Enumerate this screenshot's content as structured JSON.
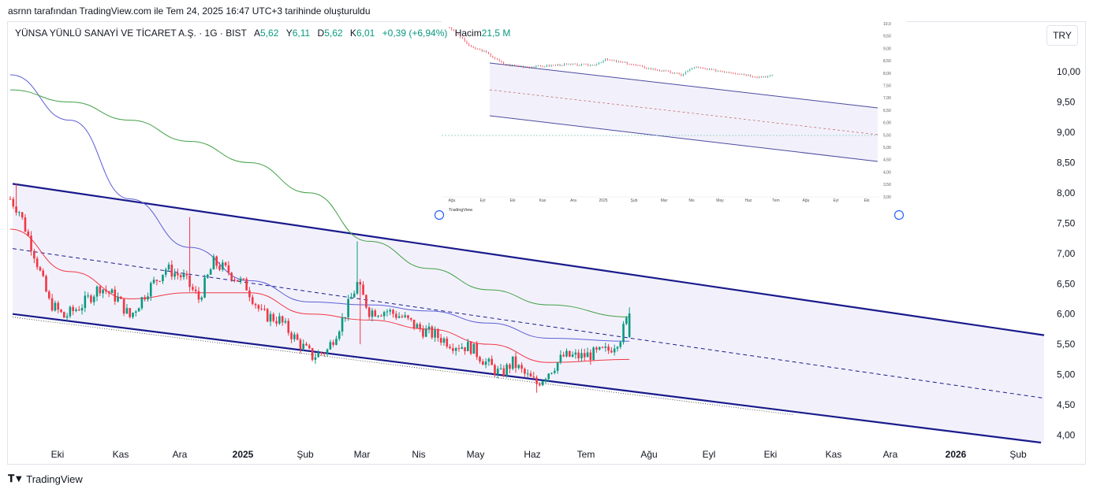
{
  "caption": "asrnn tarafından TradingView.com ile Tem 24, 2025 16:47 UTC+3 tarihinde oluşturuldu",
  "legend": {
    "symbol": "YÜNSA YÜNLÜ SANAYİ VE TİCARET A.Ş. · 1G · BIST",
    "open_label": "A",
    "open": "5,62",
    "high_label": "Y",
    "high": "6,11",
    "low_label": "D",
    "low": "5,62",
    "close_label": "K",
    "close": "6,01",
    "change": "+0,39 (+6,94%)",
    "volume_label": "Hacim",
    "volume": "21,5 M"
  },
  "currency_button": "TRY",
  "brand": "TradingView",
  "colors": {
    "up": "#089981",
    "down": "#f23645",
    "channel": "#1a1a8c",
    "channel_fill": "#f2f1fb",
    "ma_red": "#f23645",
    "ma_blue": "#5b5fd6",
    "ma_green": "#43a047"
  },
  "chart_data": {
    "type": "candlestick",
    "y_axis": {
      "min": 3.9,
      "max": 10.5,
      "ticks": [
        "10,00",
        "9,50",
        "9,00",
        "8,50",
        "8,00",
        "7,50",
        "7,00",
        "6,50",
        "6,00",
        "5,50",
        "5,00",
        "4,50",
        "4,00"
      ]
    },
    "x_axis": {
      "ticks": [
        "Eki",
        "Kas",
        "Ara",
        "2025",
        "Şub",
        "Mar",
        "Nis",
        "May",
        "Haz",
        "Tem",
        "Ağu",
        "Eyl",
        "Eki",
        "Kas",
        "Ara",
        "2026",
        "Şub"
      ]
    },
    "trading_days_shown": 208,
    "price_path": [
      [
        0,
        7.9
      ],
      [
        3,
        7.7
      ],
      [
        8,
        7.0
      ],
      [
        13,
        6.2
      ],
      [
        18,
        5.95
      ],
      [
        24,
        6.15
      ],
      [
        30,
        6.45
      ],
      [
        36,
        6.25
      ],
      [
        40,
        5.95
      ],
      [
        46,
        6.4
      ],
      [
        52,
        6.75
      ],
      [
        58,
        6.6
      ],
      [
        63,
        6.25
      ],
      [
        68,
        6.85
      ],
      [
        73,
        6.7
      ],
      [
        79,
        6.45
      ],
      [
        84,
        6.0
      ],
      [
        90,
        5.9
      ],
      [
        96,
        5.55
      ],
      [
        101,
        5.3
      ],
      [
        106,
        5.4
      ],
      [
        111,
        5.9
      ],
      [
        116,
        6.5
      ],
      [
        120,
        6.05
      ],
      [
        126,
        6.05
      ],
      [
        131,
        5.95
      ],
      [
        137,
        5.75
      ],
      [
        142,
        5.65
      ],
      [
        148,
        5.5
      ],
      [
        154,
        5.45
      ],
      [
        159,
        5.2
      ],
      [
        164,
        5.0
      ],
      [
        168,
        5.2
      ],
      [
        172,
        5.0
      ],
      [
        176,
        4.85
      ],
      [
        180,
        5.05
      ],
      [
        185,
        5.3
      ],
      [
        191,
        5.3
      ],
      [
        196,
        5.35
      ],
      [
        200,
        5.4
      ],
      [
        204,
        5.62
      ],
      [
        207,
        6.01
      ]
    ],
    "spikes": [
      {
        "day": 2,
        "high": 8.15
      },
      {
        "day": 60,
        "high": 7.6
      },
      {
        "day": 116,
        "high": 7.2
      },
      {
        "day": 117,
        "low": 5.5
      },
      {
        "day": 176,
        "low": 4.7
      },
      {
        "day": 207,
        "high": 6.11
      }
    ],
    "channel": {
      "upper": {
        "from": [
          "start",
          8.15
        ],
        "to": [
          "2026-02-end",
          5.65
        ]
      },
      "lower": {
        "from": [
          "start",
          6.0
        ],
        "to": [
          "2026-02-end",
          3.87
        ]
      },
      "mid": {
        "from": [
          "start",
          7.08
        ],
        "to": [
          "2026-02-end",
          4.61
        ]
      }
    },
    "moving_averages": [
      {
        "color": "red",
        "points": [
          [
            0,
            7.4
          ],
          [
            20,
            6.7
          ],
          [
            40,
            6.25
          ],
          [
            60,
            6.35
          ],
          [
            80,
            6.35
          ],
          [
            100,
            6.0
          ],
          [
            120,
            5.9
          ],
          [
            140,
            5.75
          ],
          [
            160,
            5.5
          ],
          [
            180,
            5.2
          ],
          [
            207,
            5.25
          ]
        ]
      },
      {
        "color": "blue",
        "points": [
          [
            0,
            9.95
          ],
          [
            20,
            9.2
          ],
          [
            40,
            7.9
          ],
          [
            60,
            7.1
          ],
          [
            80,
            6.55
          ],
          [
            100,
            6.2
          ],
          [
            120,
            6.15
          ],
          [
            140,
            6.05
          ],
          [
            160,
            5.85
          ],
          [
            180,
            5.6
          ],
          [
            207,
            5.55
          ]
        ]
      },
      {
        "color": "green",
        "points": [
          [
            0,
            9.7
          ],
          [
            20,
            9.5
          ],
          [
            40,
            9.2
          ],
          [
            60,
            8.85
          ],
          [
            80,
            8.5
          ],
          [
            100,
            8.0
          ],
          [
            120,
            7.2
          ],
          [
            140,
            6.75
          ],
          [
            160,
            6.4
          ],
          [
            180,
            6.15
          ],
          [
            207,
            5.95
          ]
        ]
      }
    ],
    "inset": {
      "y_ticks": [
        "10,0",
        "9,50",
        "9,00",
        "8,50",
        "8,00",
        "7,50",
        "7,00",
        "6,50",
        "6,00",
        "5,50",
        "5,00",
        "4,50",
        "4,00",
        "3,50",
        "3,00"
      ],
      "x_ticks": [
        "Ağu",
        "Eyl",
        "Eki",
        "Kas",
        "Ara",
        "2025",
        "Şub",
        "Mar",
        "Nis",
        "May",
        "Haz",
        "Tem",
        "Ağu",
        "Eyl",
        "Eki"
      ],
      "brand": "TradingView"
    }
  }
}
